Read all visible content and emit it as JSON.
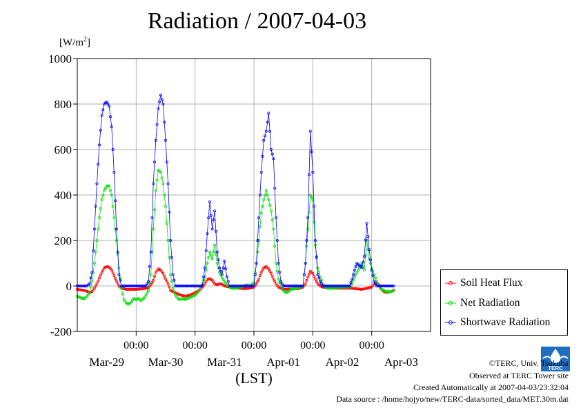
{
  "title": "Radiation / 2007-04-03",
  "unit_label": "[W/m2]",
  "x_axis_label": "(LST)",
  "footer": {
    "copyright": "©TERC, Univ. Tsukuba",
    "site": "Observed at TERC Tower site",
    "created": "Created Automatically at 2007-04-03/23:32:04",
    "source": "Data source : /home/hojyo/new/TERC-data/sorted_data/MET.30m.dat"
  },
  "logo": {
    "icon": "terc-logo-icon",
    "text": "TERC"
  },
  "chart_data": {
    "type": "line",
    "title": "Radiation / 2007-04-03",
    "ylabel": "[W/m2]",
    "xlabel": "(LST)",
    "ylim": [
      -200,
      1000
    ],
    "y_ticks": [
      -200,
      0,
      200,
      400,
      600,
      800,
      1000
    ],
    "y_tick_labels": [
      "-200",
      "0",
      "200",
      "400",
      "600",
      "800",
      "1000"
    ],
    "xlim": [
      0,
      144
    ],
    "x_time_tick_hours": [
      24,
      48,
      72,
      96,
      120
    ],
    "x_time_tick_label": "00:00",
    "date_labels": [
      {
        "label": "Mar-29",
        "hour": 12
      },
      {
        "label": "Mar-30",
        "hour": 36
      },
      {
        "label": "Mar-31",
        "hour": 60
      },
      {
        "label": "Apr-01",
        "hour": 84
      },
      {
        "label": "Apr-02",
        "hour": 108
      },
      {
        "label": "Apr-03",
        "hour": 132
      }
    ],
    "x_unit": "hours since 2007-03-29 00:00 (LST)",
    "grid": true,
    "legend_position": "bottom-right, outside plot",
    "series": [
      {
        "name": "Soil Heat Flux",
        "color": "#ff0000",
        "points": [
          [
            0,
            -15
          ],
          [
            3,
            -20
          ],
          [
            5,
            -28
          ],
          [
            6,
            -25
          ],
          [
            7,
            -10
          ],
          [
            8,
            10
          ],
          [
            9,
            35
          ],
          [
            10,
            60
          ],
          [
            11,
            80
          ],
          [
            12,
            85
          ],
          [
            13,
            82
          ],
          [
            14,
            70
          ],
          [
            15,
            45
          ],
          [
            16,
            20
          ],
          [
            17,
            0
          ],
          [
            18,
            -10
          ],
          [
            20,
            -15
          ],
          [
            24,
            -15
          ],
          [
            27,
            -12
          ],
          [
            29,
            -8
          ],
          [
            30,
            5
          ],
          [
            31,
            25
          ],
          [
            32,
            60
          ],
          [
            33,
            75
          ],
          [
            34,
            70
          ],
          [
            35,
            55
          ],
          [
            36,
            30
          ],
          [
            37,
            10
          ],
          [
            38,
            -20
          ],
          [
            40,
            -30
          ],
          [
            42,
            -40
          ],
          [
            44,
            -45
          ],
          [
            46,
            -40
          ],
          [
            48,
            -30
          ],
          [
            50,
            -18
          ],
          [
            52,
            10
          ],
          [
            53,
            28
          ],
          [
            54,
            32
          ],
          [
            55,
            25
          ],
          [
            56,
            10
          ],
          [
            57,
            5
          ],
          [
            58,
            10
          ],
          [
            59,
            8
          ],
          [
            60,
            0
          ],
          [
            62,
            -5
          ],
          [
            64,
            -8
          ],
          [
            68,
            -12
          ],
          [
            70,
            -10
          ],
          [
            72,
            -5
          ],
          [
            73,
            10
          ],
          [
            74,
            30
          ],
          [
            75,
            60
          ],
          [
            76,
            80
          ],
          [
            77,
            85
          ],
          [
            78,
            75
          ],
          [
            79,
            55
          ],
          [
            80,
            30
          ],
          [
            81,
            10
          ],
          [
            82,
            -5
          ],
          [
            84,
            -15
          ],
          [
            90,
            -12
          ],
          [
            92,
            -5
          ],
          [
            93,
            10
          ],
          [
            94,
            40
          ],
          [
            95,
            65
          ],
          [
            96,
            55
          ],
          [
            97,
            30
          ],
          [
            98,
            10
          ],
          [
            99,
            0
          ],
          [
            100,
            -5
          ],
          [
            104,
            -10
          ],
          [
            112,
            -10
          ],
          [
            116,
            -15
          ],
          [
            118,
            -10
          ],
          [
            120,
            -5
          ],
          [
            121,
            10
          ],
          [
            122,
            15
          ],
          [
            123,
            5
          ],
          [
            124,
            -15
          ],
          [
            125,
            -25
          ],
          [
            126,
            -28
          ],
          [
            128,
            -25
          ],
          [
            129,
            -18
          ]
        ]
      },
      {
        "name": "Net Radiation",
        "color": "#00dd00",
        "points": [
          [
            0,
            -45
          ],
          [
            1,
            -50
          ],
          [
            2,
            -55
          ],
          [
            3,
            -55
          ],
          [
            4,
            -45
          ],
          [
            5,
            -30
          ],
          [
            6,
            20
          ],
          [
            7,
            100
          ],
          [
            8,
            200
          ],
          [
            9,
            300
          ],
          [
            10,
            380
          ],
          [
            11,
            420
          ],
          [
            12,
            440
          ],
          [
            13,
            440
          ],
          [
            14,
            400
          ],
          [
            15,
            300
          ],
          [
            16,
            200
          ],
          [
            17,
            80
          ],
          [
            18,
            -10
          ],
          [
            19,
            -60
          ],
          [
            20,
            -75
          ],
          [
            21,
            -80
          ],
          [
            22,
            -70
          ],
          [
            23,
            -55
          ],
          [
            24,
            -60
          ],
          [
            25,
            -55
          ],
          [
            26,
            -65
          ],
          [
            27,
            -55
          ],
          [
            28,
            -40
          ],
          [
            29,
            -20
          ],
          [
            30,
            50
          ],
          [
            31,
            250
          ],
          [
            32,
            420
          ],
          [
            33,
            510
          ],
          [
            34,
            500
          ],
          [
            35,
            450
          ],
          [
            36,
            350
          ],
          [
            37,
            200
          ],
          [
            38,
            50
          ],
          [
            39,
            -10
          ],
          [
            40,
            -40
          ],
          [
            41,
            -55
          ],
          [
            42,
            -60
          ],
          [
            43,
            -55
          ],
          [
            44,
            -60
          ],
          [
            45,
            -55
          ],
          [
            46,
            -50
          ],
          [
            47,
            -45
          ],
          [
            48,
            -40
          ],
          [
            49,
            -30
          ],
          [
            50,
            -10
          ],
          [
            51,
            10
          ],
          [
            52,
            40
          ],
          [
            53,
            100
          ],
          [
            54,
            150
          ],
          [
            55,
            120
          ],
          [
            56,
            180
          ],
          [
            57,
            100
          ],
          [
            58,
            60
          ],
          [
            59,
            35
          ],
          [
            60,
            20
          ],
          [
            61,
            5
          ],
          [
            62,
            -5
          ],
          [
            63,
            -10
          ],
          [
            64,
            -10
          ],
          [
            65,
            -10
          ],
          [
            66,
            -5
          ],
          [
            67,
            -5
          ],
          [
            68,
            0
          ],
          [
            69,
            5
          ],
          [
            70,
            0
          ],
          [
            71,
            5
          ],
          [
            72,
            15
          ],
          [
            73,
            100
          ],
          [
            74,
            200
          ],
          [
            75,
            320
          ],
          [
            76,
            380
          ],
          [
            77,
            420
          ],
          [
            78,
            380
          ],
          [
            79,
            330
          ],
          [
            80,
            250
          ],
          [
            81,
            100
          ],
          [
            82,
            30
          ],
          [
            83,
            0
          ],
          [
            84,
            -20
          ],
          [
            85,
            -30
          ],
          [
            86,
            -25
          ],
          [
            87,
            -15
          ],
          [
            90,
            -10
          ],
          [
            92,
            0
          ],
          [
            93,
            100
          ],
          [
            94,
            250
          ],
          [
            95,
            400
          ],
          [
            96,
            380
          ],
          [
            97,
            180
          ],
          [
            98,
            80
          ],
          [
            99,
            40
          ],
          [
            100,
            10
          ],
          [
            101,
            -5
          ],
          [
            102,
            -10
          ],
          [
            104,
            -10
          ],
          [
            108,
            -5
          ],
          [
            111,
            -5
          ],
          [
            112,
            10
          ],
          [
            113,
            40
          ],
          [
            114,
            60
          ],
          [
            115,
            80
          ],
          [
            116,
            100
          ],
          [
            117,
            70
          ],
          [
            118,
            200
          ],
          [
            119,
            120
          ],
          [
            120,
            80
          ],
          [
            121,
            50
          ],
          [
            122,
            20
          ],
          [
            123,
            0
          ],
          [
            124,
            -15
          ],
          [
            125,
            -20
          ],
          [
            126,
            -25
          ],
          [
            128,
            -25
          ],
          [
            129,
            -20
          ]
        ]
      },
      {
        "name": "Shortwave Radiation",
        "color": "#0000ff",
        "points": [
          [
            0,
            0
          ],
          [
            4,
            0
          ],
          [
            5,
            10
          ],
          [
            6,
            60
          ],
          [
            7,
            250
          ],
          [
            8,
            450
          ],
          [
            9,
            620
          ],
          [
            10,
            750
          ],
          [
            11,
            800
          ],
          [
            12,
            810
          ],
          [
            13,
            790
          ],
          [
            14,
            700
          ],
          [
            15,
            500
          ],
          [
            16,
            250
          ],
          [
            17,
            50
          ],
          [
            18,
            0
          ],
          [
            28,
            0
          ],
          [
            29,
            20
          ],
          [
            30,
            150
          ],
          [
            31,
            450
          ],
          [
            32,
            640
          ],
          [
            33,
            780
          ],
          [
            34,
            840
          ],
          [
            35,
            800
          ],
          [
            36,
            640
          ],
          [
            37,
            450
          ],
          [
            38,
            200
          ],
          [
            39,
            50
          ],
          [
            40,
            0
          ],
          [
            51,
            0
          ],
          [
            52,
            80
          ],
          [
            53,
            230
          ],
          [
            54,
            370
          ],
          [
            55,
            250
          ],
          [
            56,
            330
          ],
          [
            57,
            150
          ],
          [
            58,
            80
          ],
          [
            59,
            50
          ],
          [
            60,
            110
          ],
          [
            61,
            40
          ],
          [
            62,
            0
          ],
          [
            72,
            0
          ],
          [
            73,
            100
          ],
          [
            74,
            300
          ],
          [
            75,
            500
          ],
          [
            76,
            640
          ],
          [
            77,
            680
          ],
          [
            78,
            760
          ],
          [
            79,
            600
          ],
          [
            80,
            560
          ],
          [
            81,
            300
          ],
          [
            82,
            100
          ],
          [
            83,
            20
          ],
          [
            84,
            0
          ],
          [
            92,
            0
          ],
          [
            93,
            100
          ],
          [
            94,
            300
          ],
          [
            95,
            680
          ],
          [
            96,
            500
          ],
          [
            97,
            200
          ],
          [
            98,
            50
          ],
          [
            99,
            20
          ],
          [
            100,
            0
          ],
          [
            111,
            0
          ],
          [
            112,
            30
          ],
          [
            113,
            70
          ],
          [
            114,
            100
          ],
          [
            115,
            90
          ],
          [
            116,
            80
          ],
          [
            117,
            130
          ],
          [
            118,
            275
          ],
          [
            119,
            160
          ],
          [
            120,
            70
          ],
          [
            121,
            20
          ],
          [
            122,
            0
          ],
          [
            129,
            0
          ]
        ]
      }
    ]
  }
}
